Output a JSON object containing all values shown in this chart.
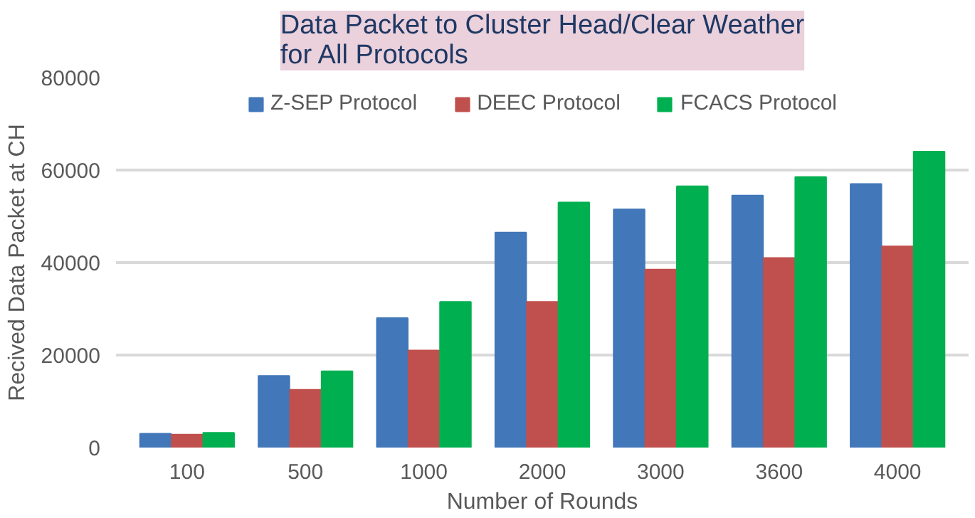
{
  "chart_data": {
    "type": "bar",
    "title": "Data Packet to Cluster Head/Clear Weather\nfor All Protocols",
    "xlabel": "Number of Rounds",
    "ylabel": "Recived Data Packet at CH",
    "categories": [
      "100",
      "500",
      "1000",
      "2000",
      "3000",
      "3600",
      "4000"
    ],
    "series": [
      {
        "name": "Z-SEP Protocol",
        "color": "#4277b9",
        "values": [
          3000,
          15500,
          28000,
          46500,
          51500,
          54500,
          57000
        ]
      },
      {
        "name": "DEEC Protocol",
        "color": "#c0504d",
        "values": [
          2800,
          12500,
          21000,
          31500,
          38500,
          41000,
          43500
        ]
      },
      {
        "name": "FCACS Protocol",
        "color": "#00b050",
        "values": [
          3200,
          16500,
          31500,
          53000,
          56500,
          58500,
          64000
        ]
      }
    ],
    "ylim": [
      0,
      80000
    ],
    "yticks": [
      0,
      20000,
      40000,
      60000,
      80000
    ],
    "grid": "y",
    "legend": "top"
  }
}
